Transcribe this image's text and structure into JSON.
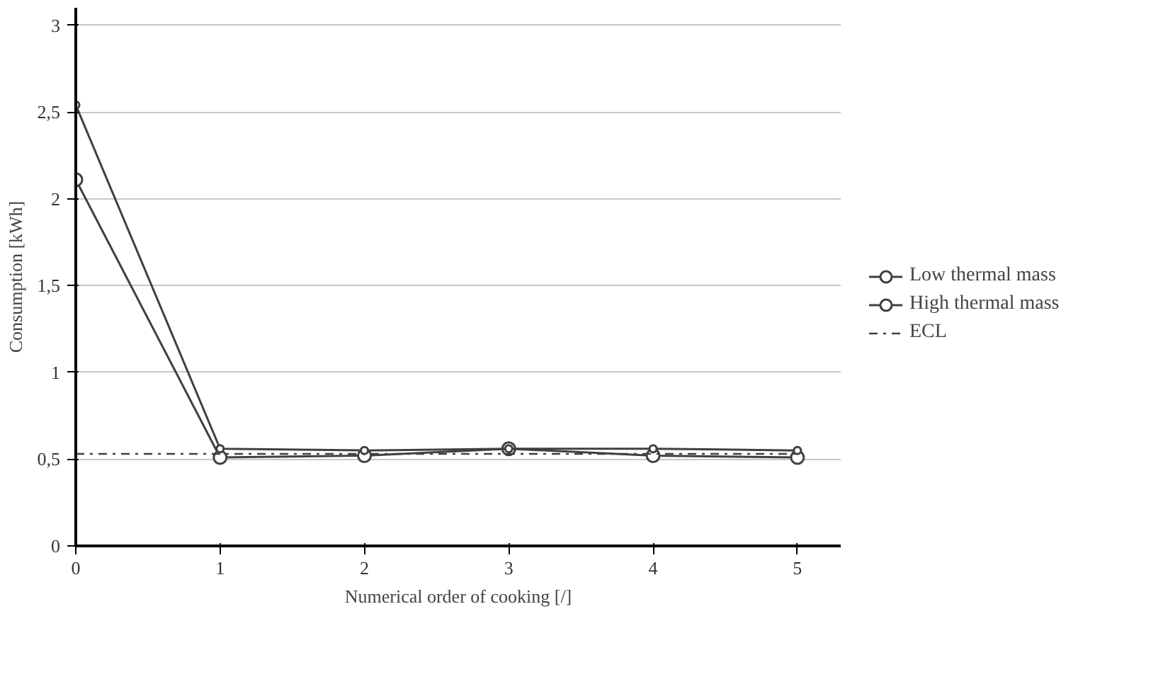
{
  "chart_data": {
    "type": "line",
    "xlabel": "Numerical order of cooking [/]",
    "ylabel": "Consumption [kWh]",
    "x": [
      0,
      1,
      2,
      3,
      4,
      5
    ],
    "series": [
      {
        "name": "Low thermal mass",
        "color": "#404040",
        "values": [
          2.11,
          0.51,
          0.52,
          0.56,
          0.52,
          0.51
        ]
      },
      {
        "name": "High thermal mass",
        "color": "#404040",
        "values": [
          2.54,
          0.56,
          0.55,
          0.56,
          0.56,
          0.55
        ]
      }
    ],
    "ref_lines": [
      {
        "axis": "y",
        "value": 0.53,
        "label": "ECL",
        "color": "#404040",
        "line_style": "dashdot"
      }
    ],
    "xlim": [
      0,
      5.3
    ],
    "ylim": [
      0,
      3.1
    ],
    "xticks": [
      0,
      1,
      2,
      3,
      4,
      5
    ],
    "yticks": [
      0,
      {
        "value": 0.5,
        "label": "0,5"
      },
      1,
      {
        "value": 1.5,
        "label": "1,5"
      },
      2,
      {
        "value": 2.5,
        "label": "2,5"
      },
      3
    ],
    "grid": "y",
    "legend": "right",
    "marker": "circle",
    "line_style": "solid"
  }
}
